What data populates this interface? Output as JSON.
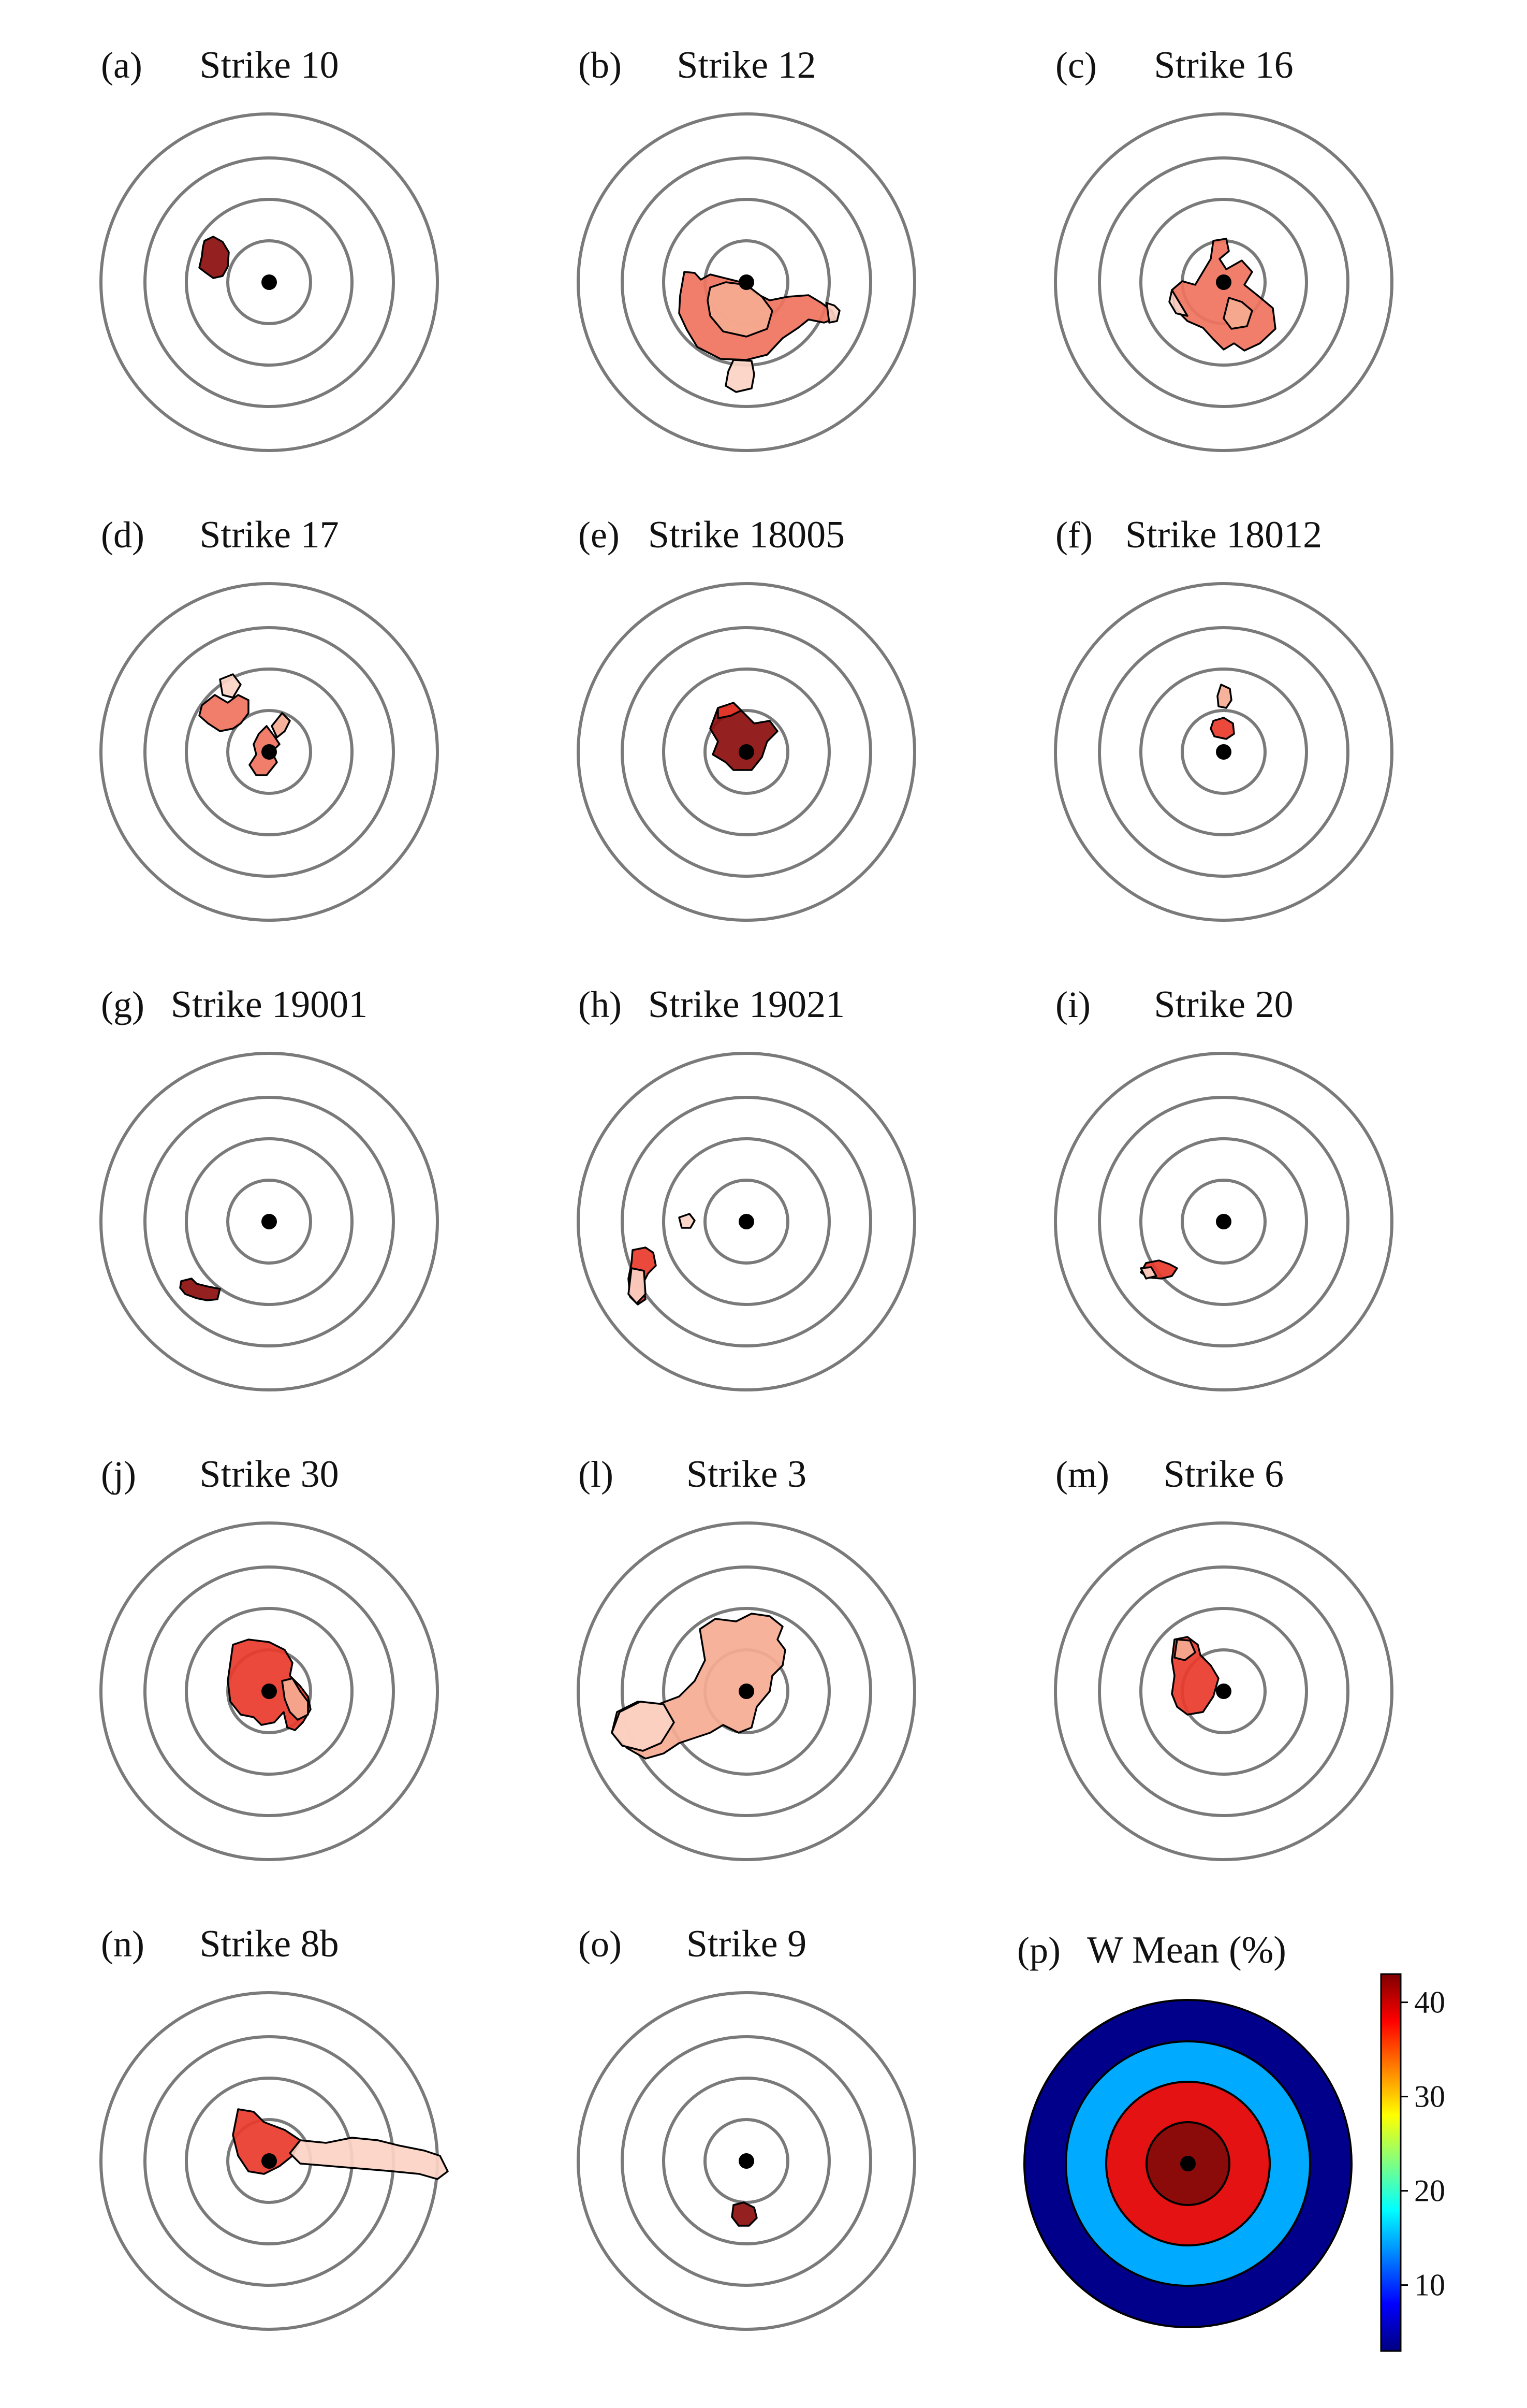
{
  "colors": {
    "ring": "#7a7a7a",
    "dot": "#000000",
    "heat_dark": "#8b0d0d",
    "heat_red": "#e8392b",
    "heat_mid": "#f0735e",
    "heat_light": "#f6ab93",
    "heat_pale": "#fbd3c4"
  },
  "panels": [
    {
      "letter": "(a)",
      "title": "Strike 10"
    },
    {
      "letter": "(b)",
      "title": "Strike 12"
    },
    {
      "letter": "(c)",
      "title": "Strike 16"
    },
    {
      "letter": "(d)",
      "title": "Strike 17"
    },
    {
      "letter": "(e)",
      "title": "Strike 18005"
    },
    {
      "letter": "(f)",
      "title": "Strike 18012"
    },
    {
      "letter": "(g)",
      "title": "Strike 19001"
    },
    {
      "letter": "(h)",
      "title": "Strike 19021"
    },
    {
      "letter": "(i)",
      "title": "Strike 20"
    },
    {
      "letter": "(j)",
      "title": "Strike 30"
    },
    {
      "letter": "(l)",
      "title": "Strike 3"
    },
    {
      "letter": "(m)",
      "title": "Strike 6"
    },
    {
      "letter": "(n)",
      "title": "Strike 8b"
    },
    {
      "letter": "(o)",
      "title": "Strike 9"
    }
  ],
  "mean_panel": {
    "letter": "(p)",
    "title": "W Mean (%)",
    "ring_colors": [
      "#8b0b0b",
      "#e41212",
      "#00aaff",
      "#00008b"
    ]
  },
  "colorbar": {
    "ticks": [
      "10",
      "20",
      "30",
      "40"
    ],
    "min": 3,
    "max": 43,
    "tick_values": [
      10,
      20,
      30,
      40
    ],
    "stops": [
      "#00007f",
      "#0000ff",
      "#0080ff",
      "#00ffff",
      "#80ff80",
      "#ffff00",
      "#ff8000",
      "#ff0000",
      "#7f0000"
    ]
  }
}
